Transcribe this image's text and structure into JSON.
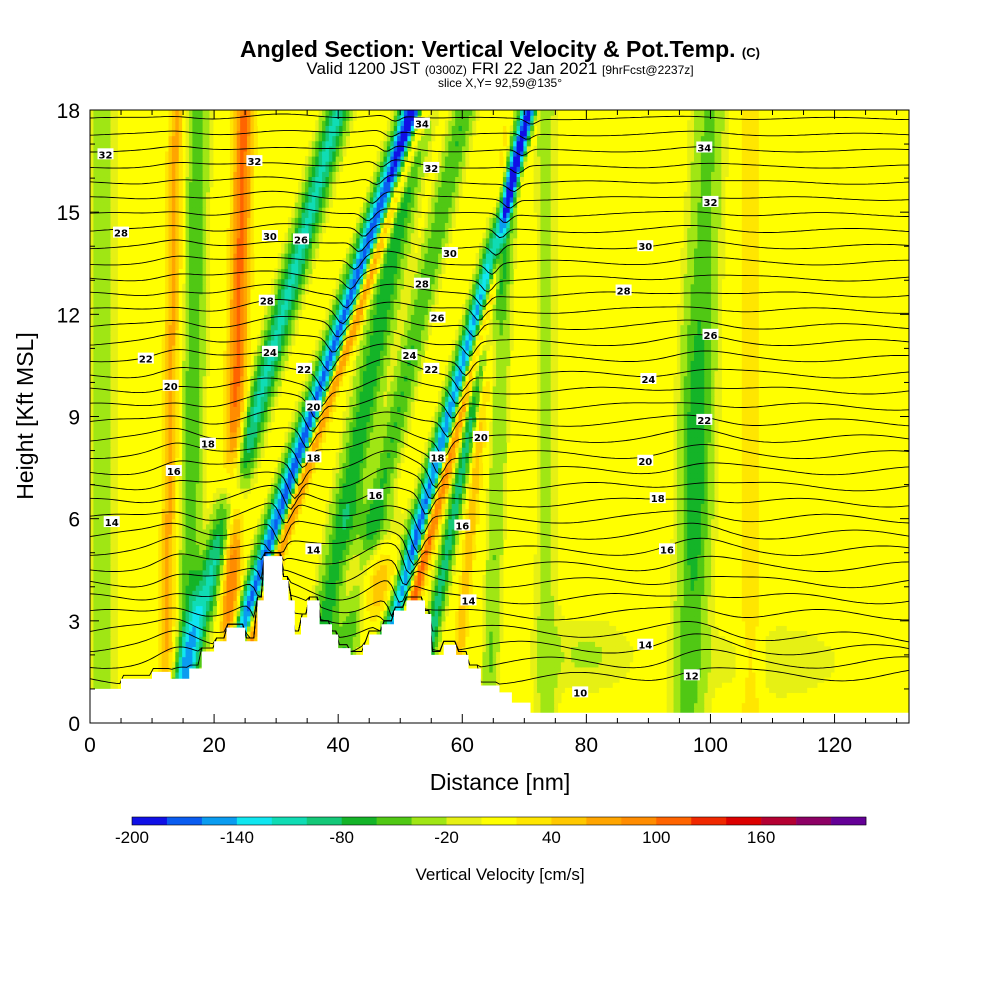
{
  "title_main": "Angled Section: Vertical Velocity & Pot.Temp.",
  "title_mark": "(C)",
  "valid_prefix": "Valid 1200 JST",
  "valid_utc": "(0300Z)",
  "valid_date": "FRI 22 Jan 2021",
  "forecast_tag": "[9hrFcst@2237z]",
  "slice_info": "slice X,Y= 92,59@135°",
  "chart_data": {
    "type": "heatmap",
    "xlabel": "Distance [nm]",
    "ylabel": "Height [Kft MSL]",
    "xlim": [
      0,
      132
    ],
    "ylim": [
      0,
      18
    ],
    "x_ticks": [
      "0",
      "20",
      "40",
      "60",
      "80",
      "100",
      "120"
    ],
    "y_ticks": [
      "0",
      "3",
      "6",
      "9",
      "12",
      "15",
      "18"
    ],
    "colorbar": {
      "label": "Vertical Velocity [cm/s]",
      "min": -200,
      "max": 200,
      "step": 20,
      "tick_labels": [
        "-200",
        "-140",
        "-80",
        "-20",
        "40",
        "100",
        "160"
      ],
      "colors": [
        "#1010e6",
        "#0a5cf0",
        "#0a9cf0",
        "#10e6f0",
        "#10dcb4",
        "#14c878",
        "#14b428",
        "#50c814",
        "#a0e614",
        "#e6f014",
        "#ffff00",
        "#ffe600",
        "#ffc800",
        "#ffa500",
        "#ff8c00",
        "#ff6400",
        "#f02800",
        "#dc0000",
        "#b40032",
        "#8c0064",
        "#640096"
      ]
    },
    "contour_labels": [
      {
        "t": "32",
        "x": 2.5,
        "y": 16.7
      },
      {
        "t": "28",
        "x": 5,
        "y": 14.4
      },
      {
        "t": "22",
        "x": 9,
        "y": 10.7
      },
      {
        "t": "20",
        "x": 13,
        "y": 9.9
      },
      {
        "t": "18",
        "x": 19,
        "y": 8.2
      },
      {
        "t": "16",
        "x": 13.5,
        "y": 7.4
      },
      {
        "t": "14",
        "x": 3.5,
        "y": 5.9
      },
      {
        "t": "32",
        "x": 26.5,
        "y": 16.5
      },
      {
        "t": "30",
        "x": 29,
        "y": 14.3
      },
      {
        "t": "28",
        "x": 28.5,
        "y": 12.4
      },
      {
        "t": "24",
        "x": 29,
        "y": 10.9
      },
      {
        "t": "26",
        "x": 34,
        "y": 14.2
      },
      {
        "t": "22",
        "x": 34.5,
        "y": 10.4
      },
      {
        "t": "20",
        "x": 36,
        "y": 9.3
      },
      {
        "t": "18",
        "x": 36,
        "y": 7.8
      },
      {
        "t": "14",
        "x": 36,
        "y": 5.1
      },
      {
        "t": "16",
        "x": 46,
        "y": 6.7
      },
      {
        "t": "34",
        "x": 53.5,
        "y": 17.6
      },
      {
        "t": "32",
        "x": 55,
        "y": 16.3
      },
      {
        "t": "30",
        "x": 58,
        "y": 13.8
      },
      {
        "t": "28",
        "x": 53.5,
        "y": 12.9
      },
      {
        "t": "26",
        "x": 56,
        "y": 11.9
      },
      {
        "t": "24",
        "x": 51.5,
        "y": 10.8
      },
      {
        "t": "22",
        "x": 55,
        "y": 10.4
      },
      {
        "t": "20",
        "x": 63,
        "y": 8.4
      },
      {
        "t": "18",
        "x": 56,
        "y": 7.8
      },
      {
        "t": "16",
        "x": 60,
        "y": 5.8
      },
      {
        "t": "14",
        "x": 61,
        "y": 3.6
      },
      {
        "t": "34",
        "x": 99,
        "y": 16.9
      },
      {
        "t": "32",
        "x": 100,
        "y": 15.3
      },
      {
        "t": "30",
        "x": 89.5,
        "y": 14.0
      },
      {
        "t": "28",
        "x": 86,
        "y": 12.7
      },
      {
        "t": "26",
        "x": 100,
        "y": 11.4
      },
      {
        "t": "24",
        "x": 90,
        "y": 10.1
      },
      {
        "t": "22",
        "x": 99,
        "y": 8.9
      },
      {
        "t": "20",
        "x": 89.5,
        "y": 7.7
      },
      {
        "t": "18",
        "x": 91.5,
        "y": 6.6
      },
      {
        "t": "16",
        "x": 93,
        "y": 5.1
      },
      {
        "t": "14",
        "x": 89.5,
        "y": 2.3
      },
      {
        "t": "12",
        "x": 97,
        "y": 1.4
      },
      {
        "t": "10",
        "x": 79,
        "y": 0.9
      }
    ]
  }
}
